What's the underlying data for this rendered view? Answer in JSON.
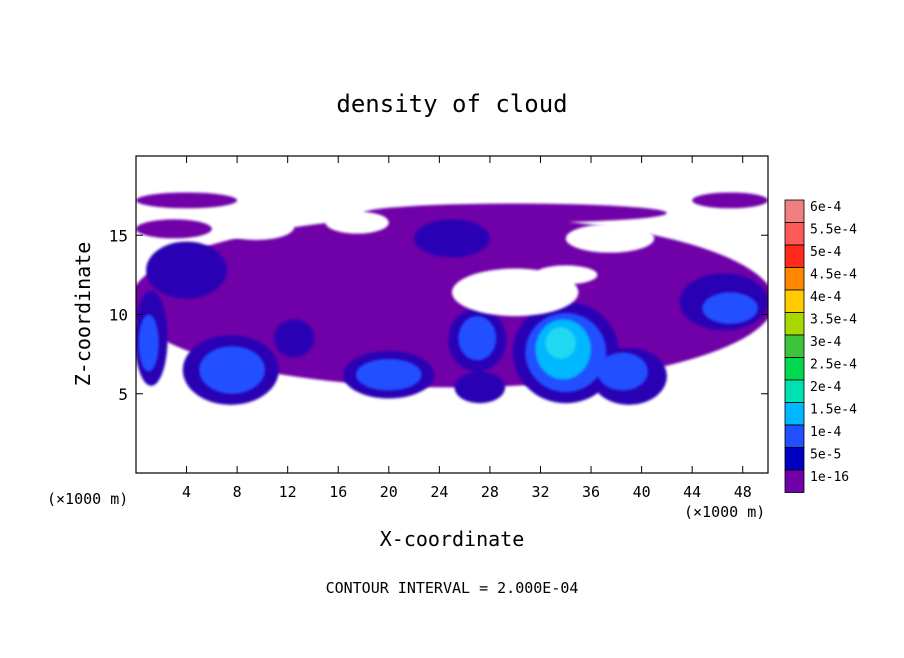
{
  "chart_data": {
    "type": "heatmap",
    "title": "density of cloud",
    "xlabel": "X-coordinate",
    "ylabel": "Z-coordinate",
    "x_unit_left": "(×1000 m)",
    "x_unit_right": "(×1000 m)",
    "footer": "CONTOUR INTERVAL = 2.000E-04",
    "xlim": [
      0,
      50
    ],
    "ylim": [
      0,
      20
    ],
    "x_ticks": [
      "4",
      "8",
      "12",
      "16",
      "20",
      "24",
      "28",
      "32",
      "36",
      "40",
      "44",
      "48"
    ],
    "x_tick_values": [
      4,
      8,
      12,
      16,
      20,
      24,
      28,
      32,
      36,
      40,
      44,
      48
    ],
    "y_ticks": [
      "5",
      "10",
      "15"
    ],
    "y_tick_values": [
      5,
      10,
      15
    ],
    "legend_position": "right",
    "colorbar": [
      {
        "label": "6e-4",
        "color": "#f08080"
      },
      {
        "label": "5.5e-4",
        "color": "#ff5a5a"
      },
      {
        "label": "5e-4",
        "color": "#ff2a1a"
      },
      {
        "label": "4.5e-4",
        "color": "#ff8800"
      },
      {
        "label": "4e-4",
        "color": "#ffcc00"
      },
      {
        "label": "3.5e-4",
        "color": "#a8d800"
      },
      {
        "label": "3e-4",
        "color": "#3cc43c"
      },
      {
        "label": "2.5e-4",
        "color": "#00d850"
      },
      {
        "label": "2e-4",
        "color": "#00e0b0"
      },
      {
        "label": "1.5e-4",
        "color": "#00b8ff"
      },
      {
        "label": "1e-4",
        "color": "#2050ff"
      },
      {
        "label": "5e-5",
        "color": "#0000c0"
      },
      {
        "label": "1e-16",
        "color": "#7000a8"
      }
    ],
    "field_layers": [
      {
        "level": "1e-16",
        "color": "#7000a8",
        "blobs": [
          {
            "cx": 25,
            "cy": 10.8,
            "rx": 25.5,
            "ry": 5.4
          },
          {
            "cx": 4,
            "cy": 17.2,
            "rx": 4,
            "ry": 0.5
          },
          {
            "cx": 47,
            "cy": 17.2,
            "rx": 3,
            "ry": 0.5
          },
          {
            "cx": 30,
            "cy": 16.4,
            "rx": 12,
            "ry": 0.6
          },
          {
            "cx": 3,
            "cy": 15.4,
            "rx": 3,
            "ry": 0.6
          }
        ]
      },
      {
        "level": "5e-5",
        "color": "#2a00b4",
        "blobs": [
          {
            "cx": 4,
            "cy": 12.8,
            "rx": 3.2,
            "ry": 1.8
          },
          {
            "cx": 25,
            "cy": 14.8,
            "rx": 3,
            "ry": 1.2
          },
          {
            "cx": 1.2,
            "cy": 8.5,
            "rx": 1.3,
            "ry": 3
          },
          {
            "cx": 46.5,
            "cy": 10.8,
            "rx": 3.5,
            "ry": 1.8
          },
          {
            "cx": 7.5,
            "cy": 6.5,
            "rx": 3.8,
            "ry": 2.2
          },
          {
            "cx": 20,
            "cy": 6.2,
            "rx": 3.6,
            "ry": 1.5
          },
          {
            "cx": 27,
            "cy": 8.4,
            "rx": 2.3,
            "ry": 2
          },
          {
            "cx": 27.2,
            "cy": 5.4,
            "rx": 2,
            "ry": 1
          },
          {
            "cx": 34,
            "cy": 7.6,
            "rx": 4.2,
            "ry": 3.2
          },
          {
            "cx": 39,
            "cy": 6.1,
            "rx": 3,
            "ry": 1.8
          },
          {
            "cx": 12.5,
            "cy": 8.5,
            "rx": 1.6,
            "ry": 1.2
          }
        ]
      },
      {
        "level": "1e-4",
        "color": "#2050ff",
        "blobs": [
          {
            "cx": 7.6,
            "cy": 6.5,
            "rx": 2.6,
            "ry": 1.5
          },
          {
            "cx": 20,
            "cy": 6.2,
            "rx": 2.6,
            "ry": 1
          },
          {
            "cx": 27,
            "cy": 8.5,
            "rx": 1.5,
            "ry": 1.4
          },
          {
            "cx": 34,
            "cy": 7.6,
            "rx": 3.2,
            "ry": 2.5
          },
          {
            "cx": 38.5,
            "cy": 6.4,
            "rx": 2,
            "ry": 1.2
          },
          {
            "cx": 47,
            "cy": 10.4,
            "rx": 2.2,
            "ry": 1
          },
          {
            "cx": 1,
            "cy": 8.2,
            "rx": 0.8,
            "ry": 1.8
          }
        ]
      },
      {
        "level": "1.5e-4",
        "color": "#00b8ff",
        "blobs": [
          {
            "cx": 33.8,
            "cy": 7.8,
            "rx": 2.2,
            "ry": 1.9
          }
        ]
      },
      {
        "level": "2e-4",
        "color": "#20d8f0",
        "blobs": [
          {
            "cx": 33.6,
            "cy": 8.2,
            "rx": 1.2,
            "ry": 1
          }
        ]
      }
    ],
    "clear_regions": [
      {
        "cx": 9.5,
        "cy": 15.5,
        "rx": 3,
        "ry": 0.8
      },
      {
        "cx": 30,
        "cy": 11.4,
        "rx": 5,
        "ry": 1.5
      },
      {
        "cx": 37.5,
        "cy": 14.8,
        "rx": 3.5,
        "ry": 0.9
      },
      {
        "cx": 17.5,
        "cy": 15.8,
        "rx": 2.5,
        "ry": 0.7
      },
      {
        "cx": 45,
        "cy": 15.8,
        "rx": 3,
        "ry": 0.6
      },
      {
        "cx": 34,
        "cy": 12.5,
        "rx": 2.5,
        "ry": 0.6
      }
    ]
  }
}
